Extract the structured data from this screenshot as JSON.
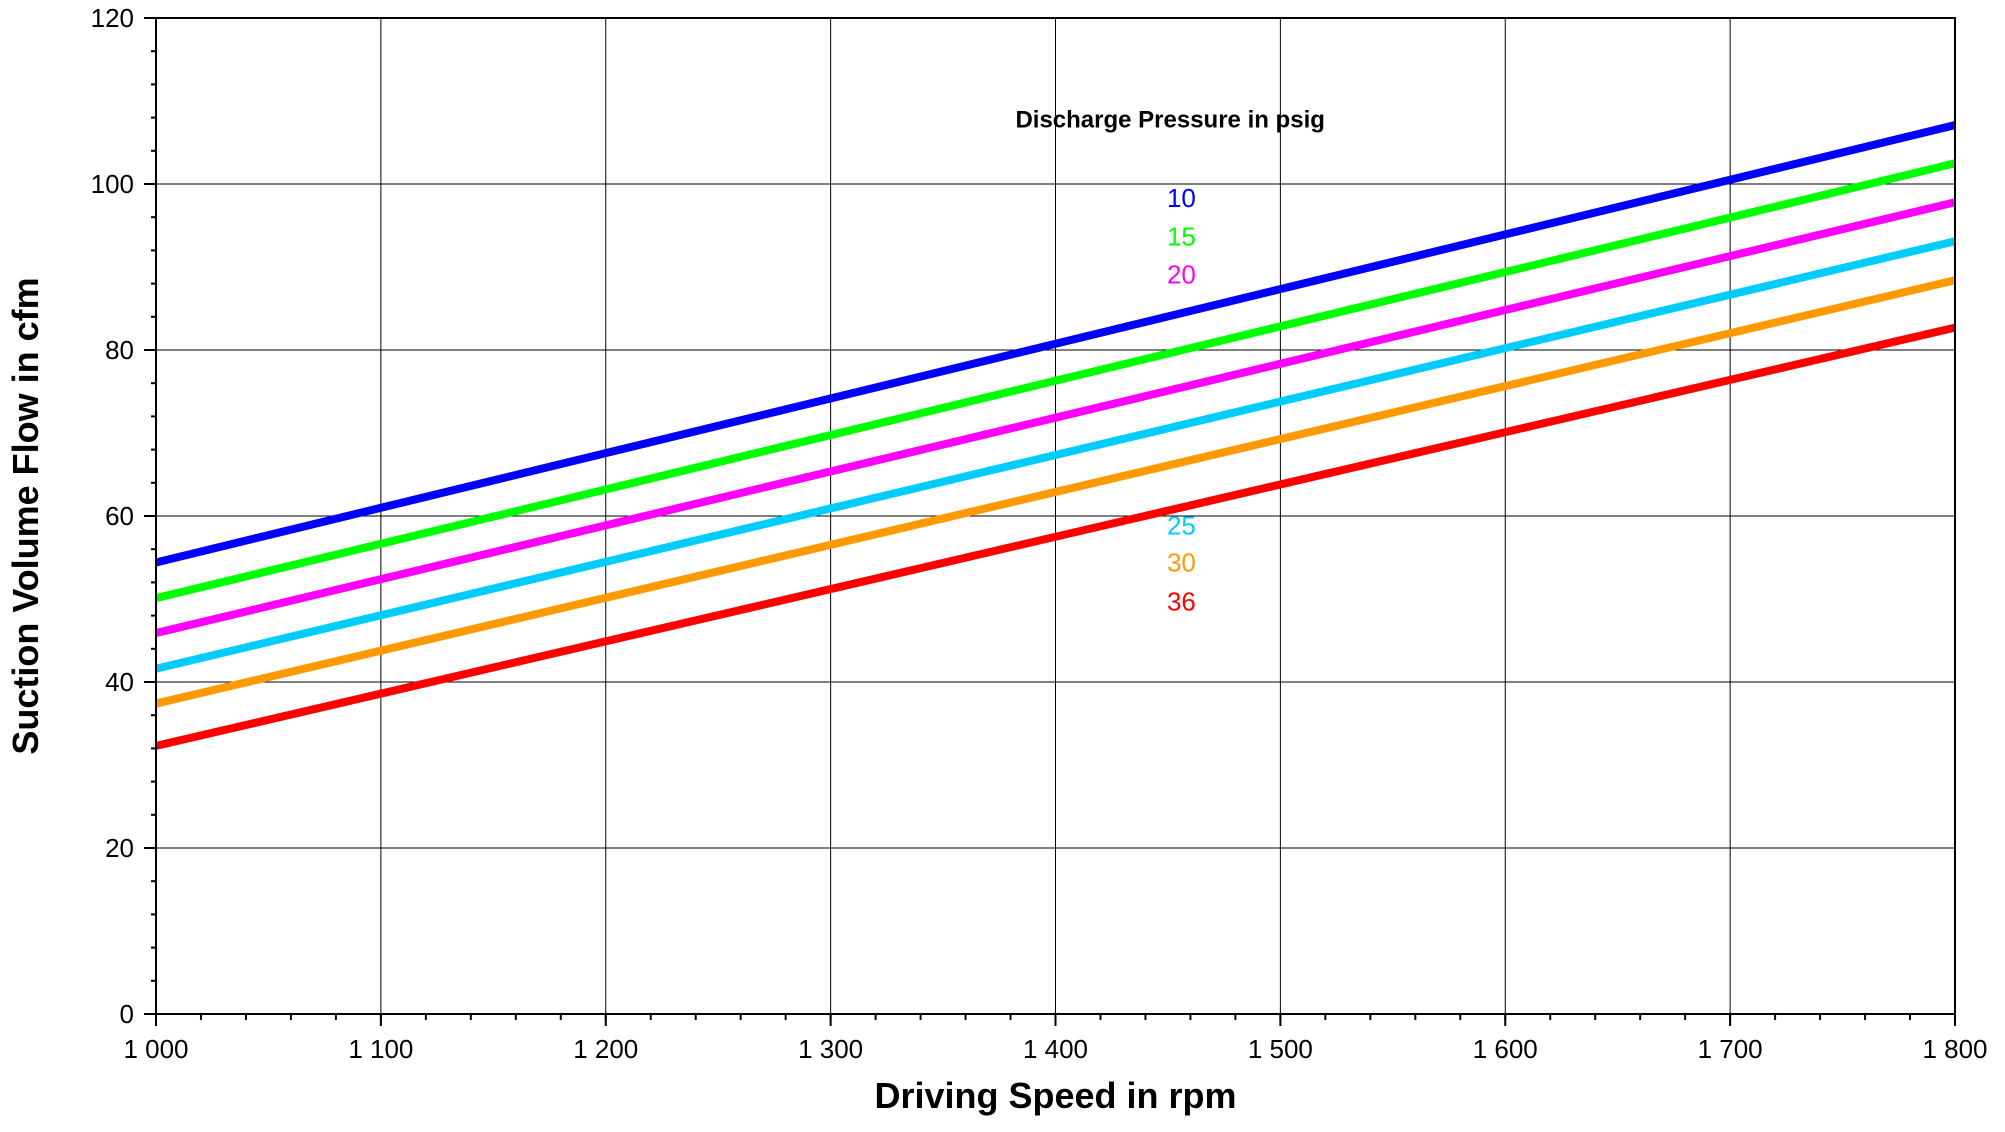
{
  "chart_data": {
    "type": "line",
    "title": "",
    "xlabel": "Driving Speed in rpm",
    "ylabel": "Suction Volume Flow in cfm",
    "xlim": [
      1000,
      1800
    ],
    "ylim": [
      0,
      120
    ],
    "x_ticks": [
      1000,
      1100,
      1200,
      1300,
      1400,
      1500,
      1600,
      1700,
      1800
    ],
    "x_tick_labels": [
      "1 000",
      "1 100",
      "1 200",
      "1 300",
      "1 400",
      "1 500",
      "1 600",
      "1 700",
      "1 800"
    ],
    "y_ticks": [
      0,
      20,
      40,
      60,
      80,
      100,
      120
    ],
    "y_tick_labels": [
      "0",
      "20",
      "40",
      "60",
      "80",
      "100",
      "120"
    ],
    "x_minor_step": 20,
    "y_minor_step": 4,
    "grid": true,
    "legend_title": "Discharge Pressure in psig",
    "legend_placement": "inside, upper-middle",
    "series": [
      {
        "name": "10",
        "color": "#0000FF",
        "x": [
          1000,
          1800
        ],
        "values": [
          54.4,
          107.1
        ]
      },
      {
        "name": "15",
        "color": "#00FF00",
        "x": [
          1000,
          1800
        ],
        "values": [
          50.1,
          102.5
        ]
      },
      {
        "name": "20",
        "color": "#FF00FF",
        "x": [
          1000,
          1800
        ],
        "values": [
          45.9,
          97.8
        ]
      },
      {
        "name": "25",
        "color": "#00CCFF",
        "x": [
          1000,
          1800
        ],
        "values": [
          41.6,
          93.1
        ]
      },
      {
        "name": "30",
        "color": "#FF9900",
        "x": [
          1000,
          1800
        ],
        "values": [
          37.4,
          88.4
        ]
      },
      {
        "name": "36",
        "color": "#FF0000",
        "x": [
          1000,
          1800
        ],
        "values": [
          32.3,
          82.7
        ]
      }
    ]
  }
}
